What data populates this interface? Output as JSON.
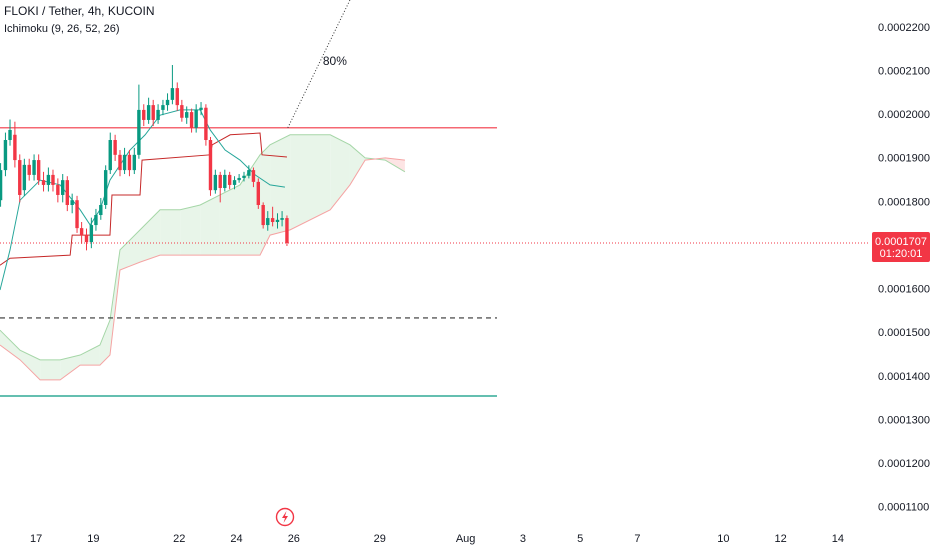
{
  "chart_data": {
    "type": "candlestick",
    "title": "FLOKI / Tether, 4h, KUCOIN",
    "indicator": "Ichimoku (9, 26, 52, 26)",
    "up_color": "#089981",
    "down_color": "#f23645",
    "x": [
      15.76,
      15.93,
      16.09,
      16.26,
      16.43,
      16.59,
      16.76,
      16.93,
      17.09,
      17.26,
      17.43,
      17.59,
      17.76,
      17.93,
      18.09,
      18.26,
      18.43,
      18.59,
      18.76,
      18.93,
      19.09,
      19.26,
      19.43,
      19.59,
      19.76,
      19.93,
      20.09,
      20.26,
      20.43,
      20.59,
      20.76,
      20.93,
      21.09,
      21.26,
      21.43,
      21.59,
      21.76,
      21.93,
      22.09,
      22.26,
      22.43,
      22.59,
      22.76,
      22.93,
      23.09,
      23.26,
      23.43,
      23.59,
      23.76,
      23.93,
      24.09,
      24.26,
      24.43,
      24.59,
      24.76,
      24.93,
      25.09,
      25.26,
      25.43,
      25.59,
      25.76
    ],
    "open": [
      0.0001805,
      0.0001874,
      0.0001943,
      0.0001955,
      0.0001897,
      0.0001828,
      0.0001886,
      0.0001863,
      0.0001897,
      0.0001851,
      0.000184,
      0.0001863,
      0.000184,
      0.0001817,
      0.0001851,
      0.0001794,
      0.0001805,
      0.0001741,
      0.0001725,
      0.0001709,
      0.0001748,
      0.0001771,
      0.0001794,
      0.0001874,
      0.0001943,
      0.0001909,
      0.0001874,
      0.0001909,
      0.0001874,
      0.0001909,
      0.0002012,
      0.0001989,
      0.0002023,
      0.0001989,
      0.0002012,
      0.0002023,
      0.0002035,
      0.0002062,
      0.0002023,
      0.0001994,
      0.0002007,
      0.0001971,
      0.0002012,
      0.0002017,
      0.0001943,
      0.0001828,
      0.0001863,
      0.0001833,
      0.0001863,
      0.000184,
      0.0001851,
      0.0001856,
      0.0001861,
      0.0001874,
      0.0001847,
      0.0001794,
      0.0001748,
      0.0001764,
      0.0001755,
      0.000176,
      0.0001764
    ],
    "high": [
      0.000189,
      0.000196,
      0.000199,
      0.0001985,
      0.000191,
      0.00019,
      0.00019,
      0.000191,
      0.000191,
      0.000187,
      0.000188,
      0.0001875,
      0.0001855,
      0.0001865,
      0.000186,
      0.000182,
      0.0001815,
      0.0001755,
      0.000174,
      0.0001765,
      0.0001785,
      0.000181,
      0.0001885,
      0.000196,
      0.0001955,
      0.000192,
      0.0001925,
      0.000192,
      0.0001925,
      0.000207,
      0.0002025,
      0.000204,
      0.0002035,
      0.0002025,
      0.0002035,
      0.000205,
      0.0002115,
      0.0002075,
      0.0002035,
      0.000202,
      0.0002015,
      0.0002025,
      0.000203,
      0.0002025,
      0.000195,
      0.0001875,
      0.000187,
      0.0001875,
      0.000187,
      0.000186,
      0.0001865,
      0.000187,
      0.0001885,
      0.000188,
      0.0001855,
      0.00018,
      0.000178,
      0.000179,
      0.0001775,
      0.000178,
      0.000177
    ],
    "low": [
      0.000179,
      0.000186,
      0.000193,
      0.000188,
      0.00018,
      0.0001815,
      0.000185,
      0.000185,
      0.000184,
      0.0001825,
      0.0001825,
      0.0001825,
      0.00018,
      0.00018,
      0.000178,
      0.0001775,
      0.000173,
      0.0001705,
      0.000169,
      0.0001695,
      0.0001735,
      0.000176,
      0.0001785,
      0.0001865,
      0.0001895,
      0.000186,
      0.0001865,
      0.000186,
      0.0001865,
      0.00019,
      0.0001975,
      0.000198,
      0.0001975,
      0.000198,
      0.0002,
      0.000201,
      0.0002025,
      0.000201,
      0.0001985,
      0.000198,
      0.000196,
      0.000196,
      0.0002,
      0.000193,
      0.0001815,
      0.000182,
      0.00018,
      0.0001825,
      0.000183,
      0.000183,
      0.0001845,
      0.0001848,
      0.0001855,
      0.0001835,
      0.0001785,
      0.000174,
      0.0001735,
      0.0001745,
      0.000174,
      0.0001745,
      0.00017
    ],
    "close": [
      0.0001874,
      0.0001943,
      0.0001966,
      0.0001897,
      0.0001817,
      0.0001886,
      0.0001863,
      0.0001897,
      0.0001851,
      0.000184,
      0.0001863,
      0.000184,
      0.0001817,
      0.0001851,
      0.0001794,
      0.0001805,
      0.0001741,
      0.0001725,
      0.0001709,
      0.0001748,
      0.0001771,
      0.0001794,
      0.0001874,
      0.0001943,
      0.0001909,
      0.0001874,
      0.0001909,
      0.0001874,
      0.0001909,
      0.0002012,
      0.0001989,
      0.0002023,
      0.0001989,
      0.0002012,
      0.0002023,
      0.0002035,
      0.0002062,
      0.0002023,
      0.0001994,
      0.0002007,
      0.0001971,
      0.0002012,
      0.0002017,
      0.0001943,
      0.0001828,
      0.0001863,
      0.0001833,
      0.0001863,
      0.000184,
      0.0001851,
      0.0001856,
      0.0001861,
      0.0001874,
      0.0001847,
      0.0001794,
      0.0001748,
      0.0001764,
      0.0001755,
      0.000176,
      0.0001764,
      0.0001707
    ],
    "ichimoku": {
      "conversion": {
        "color": "#26a69a",
        "x": [
          15.74,
          16.09,
          16.44,
          17.14,
          17.84,
          18.54,
          18.89,
          19.23,
          19.58,
          20.28,
          20.81,
          21.33,
          22.03,
          22.73,
          23.08,
          23.6,
          24.12,
          24.65,
          25.17,
          25.69
        ],
        "values": [
          0.0001599,
          0.0001691,
          0.0001805,
          0.0001851,
          0.000184,
          0.0001783,
          0.0001748,
          0.0001783,
          0.0001851,
          0.000192,
          0.0001955,
          0.0002,
          0.0002012,
          0.0002012,
          0.0001966,
          0.000192,
          0.0001897,
          0.0001863,
          0.000184,
          0.0001835
        ]
      },
      "base": {
        "color": "#c62828",
        "x": [
          15.74,
          16.09,
          18.19,
          18.26,
          19.58,
          19.65,
          20.63,
          20.7,
          23.08,
          23.15,
          23.78,
          24.82,
          24.89,
          25.76
        ],
        "values": [
          0.0001656,
          0.0001672,
          0.0001679,
          0.0001725,
          0.0001725,
          0.0001817,
          0.0001817,
          0.0001897,
          0.0001909,
          0.0001932,
          0.0001955,
          0.0001959,
          0.0001909,
          0.0001904
        ]
      },
      "cloud": {
        "span_a_color": "#a5d6a7",
        "span_b_color": "#f5a3a3",
        "up_fill": "#e8f5e9",
        "down_fill": "#fde4e4",
        "x": [
          15.74,
          16.44,
          17.14,
          17.84,
          18.54,
          19.23,
          19.58,
          19.93,
          20.63,
          21.33,
          22.03,
          22.73,
          23.42,
          24.12,
          24.82,
          25.17,
          25.87,
          27.27,
          27.96,
          28.49,
          29.19,
          29.88
        ],
        "span_a": [
          0.0001507,
          0.0001461,
          0.0001439,
          0.0001439,
          0.000145,
          0.0001473,
          0.000153,
          0.0001691,
          0.0001737,
          0.0001783,
          0.0001783,
          0.0001794,
          0.0001817,
          0.000184,
          0.0001909,
          0.0001932,
          0.0001955,
          0.0001955,
          0.0001932,
          0.0001902,
          0.0001897,
          0.000187
        ],
        "span_b": [
          0.0001473,
          0.0001439,
          0.0001393,
          0.0001393,
          0.0001427,
          0.0001427,
          0.000145,
          0.0001645,
          0.0001663,
          0.0001679,
          0.0001679,
          0.0001679,
          0.0001679,
          0.0001679,
          0.0001679,
          0.0001725,
          0.0001737,
          0.0001783,
          0.000184,
          0.0001897,
          0.0001902,
          0.0001897
        ]
      }
    },
    "hlines": [
      {
        "value": 0.0001971,
        "color": "#f23645",
        "dashed": false
      },
      {
        "value": 0.0001535,
        "color": "#333333",
        "dashed": true
      },
      {
        "value": 0.0001356,
        "color": "#089981",
        "dashed": false
      }
    ],
    "trend_line": {
      "x": [
        25.79,
        27.96
      ],
      "values": [
        0.0001971,
        0.0002264
      ],
      "label": "80%",
      "color": "#333333"
    },
    "last_price": {
      "value": 0.0001707,
      "countdown": "01:20:01",
      "color": "#f23645"
    },
    "xlim": [
      15.74,
      46.12
    ],
    "ylim": [
      0.0001003,
      0.0002264
    ],
    "xticks": [
      17,
      19,
      22,
      24,
      26,
      29,
      {
        "value": 32,
        "label": "Aug"
      },
      {
        "value": 34,
        "label": "3"
      },
      {
        "value": 36,
        "label": "5"
      },
      {
        "value": 38,
        "label": "7"
      },
      {
        "value": 41,
        "label": "10"
      },
      {
        "value": 43,
        "label": "12"
      },
      {
        "value": 45,
        "label": "14"
      }
    ],
    "yticks": [
      {
        "value": 0.00022,
        "label": "0.0002200"
      },
      {
        "value": 0.00021,
        "label": "0.0002100"
      },
      {
        "value": 0.0002,
        "label": "0.0002000"
      },
      {
        "value": 0.00019,
        "label": "0.0001900"
      },
      {
        "value": 0.00018,
        "label": "0.0001800"
      },
      {
        "value": 0.00016,
        "label": "0.0001600"
      },
      {
        "value": 0.00015,
        "label": "0.0001500"
      },
      {
        "value": 0.00014,
        "label": "0.0001400"
      },
      {
        "value": 0.00013,
        "label": "0.0001300"
      },
      {
        "value": 0.00012,
        "label": "0.0001200"
      },
      {
        "value": 0.00011,
        "label": "0.0001100"
      }
    ]
  }
}
